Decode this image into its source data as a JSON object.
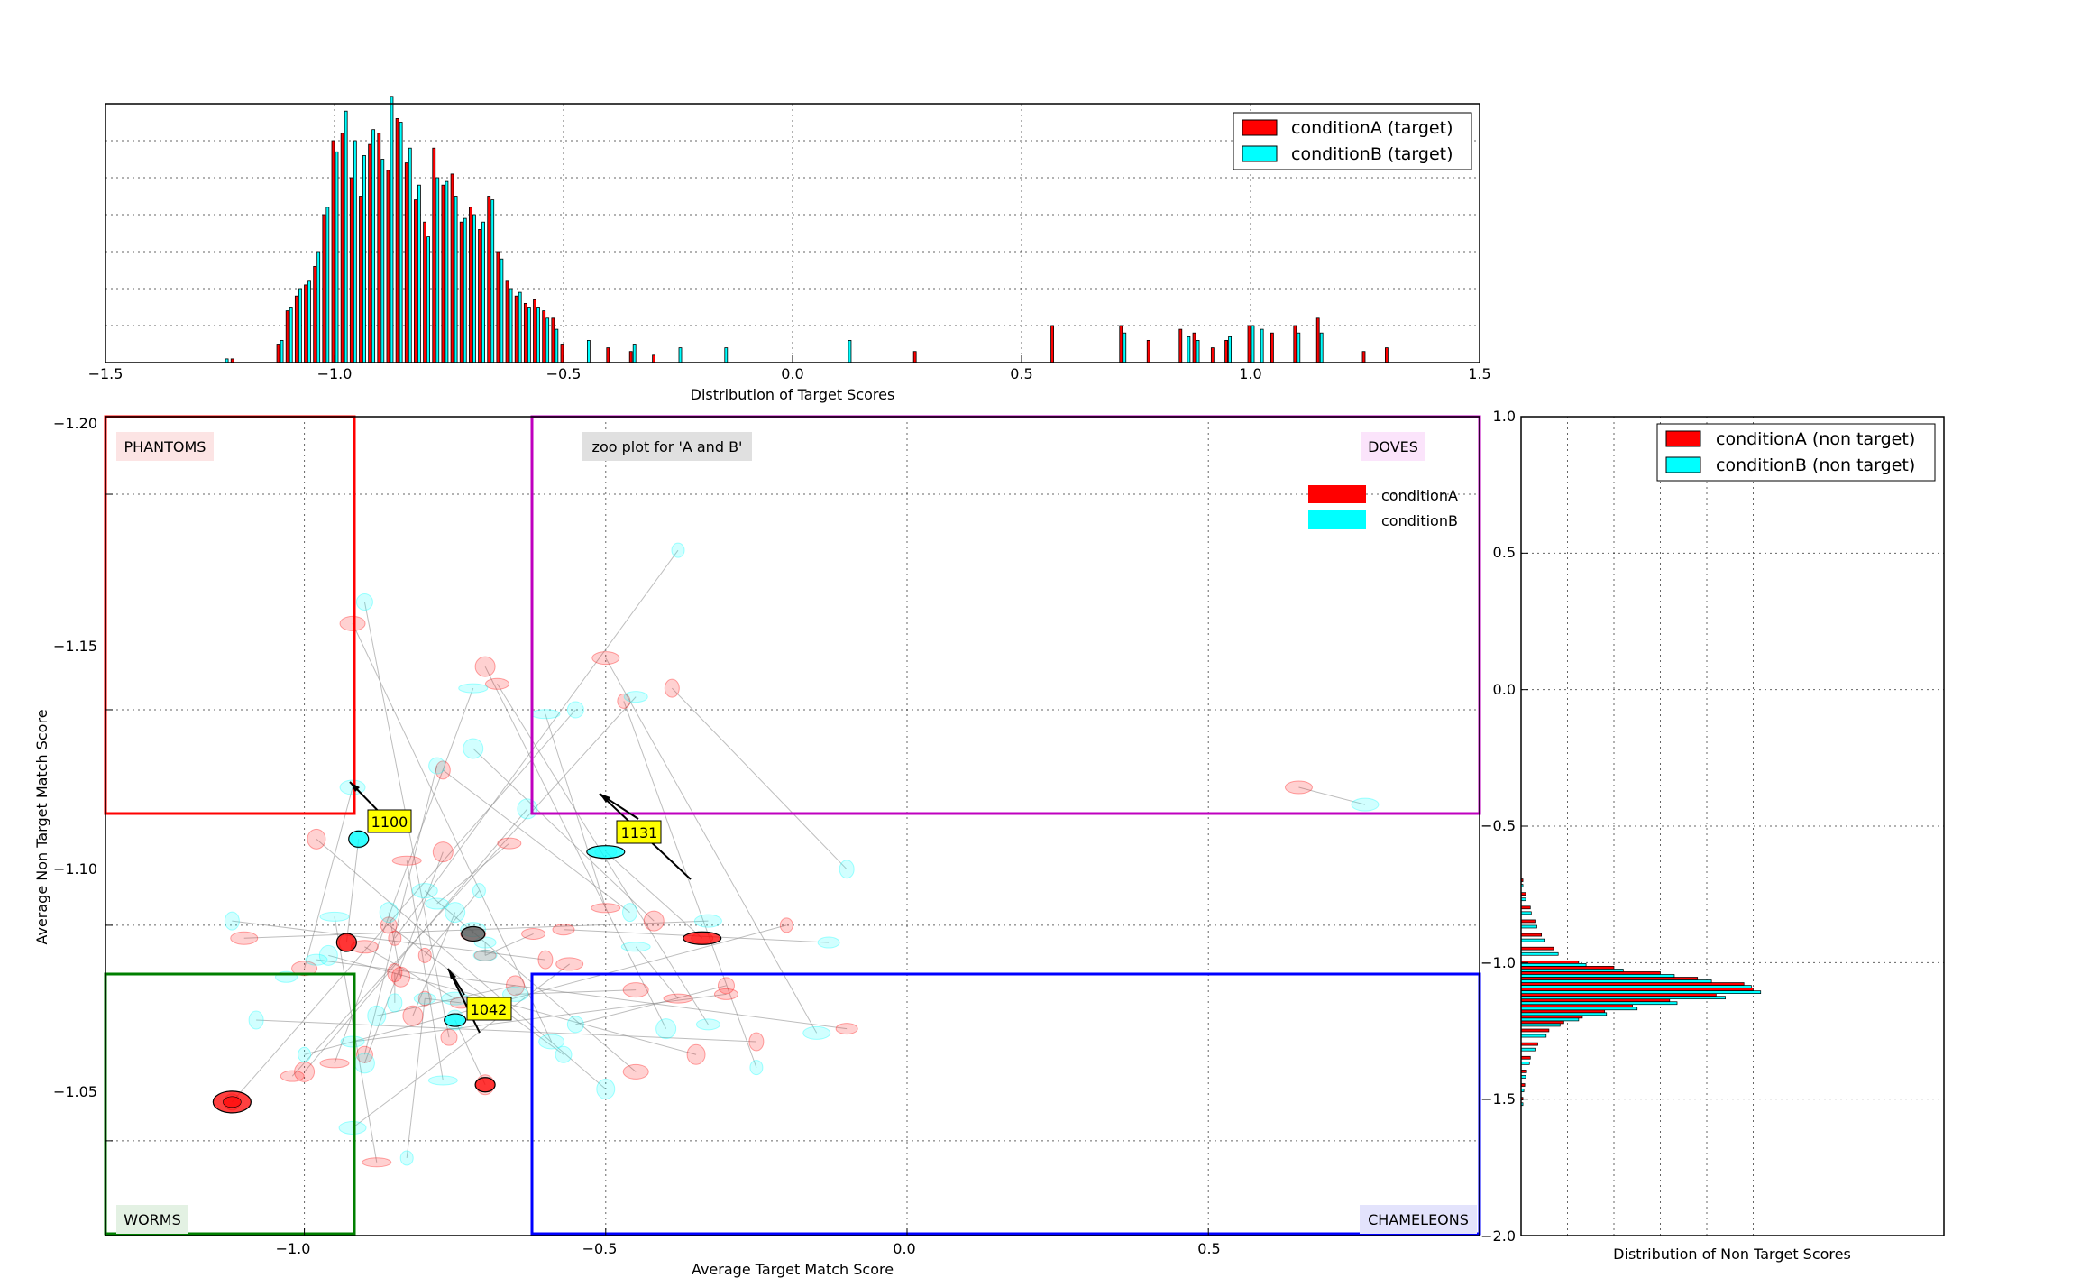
{
  "top_hist": {
    "xlabel": "Distribution of Target Scores",
    "xticks": [
      "−1.5",
      "−1.0",
      "−0.5",
      "0.0",
      "0.5",
      "1.0",
      "1.5"
    ],
    "legend": [
      "conditionA (target)",
      "conditionB (target)"
    ]
  },
  "right_hist": {
    "xlabel": "Distribution of Non Target Scores",
    "yticks": [
      "1.0",
      "0.5",
      "0.0",
      "−0.5",
      "−1.0",
      "−1.5",
      "−2.0"
    ],
    "legend": [
      "conditionA (non target)",
      "conditionB (non target)"
    ]
  },
  "main": {
    "xlabel": "Average Target Match Score",
    "ylabel": "Average Non Target Match Score",
    "xticks": [
      "−1.0",
      "−0.5",
      "0.0",
      "0.5"
    ],
    "yticks": [
      "−1.20",
      "−1.15",
      "−1.10",
      "−1.05"
    ],
    "title_box": "zoo plot for 'A and B'",
    "regions": {
      "phantoms": "PHANTOMS",
      "doves": "DOVES",
      "worms": "WORMS",
      "chameleons": "CHAMELEONS"
    },
    "legend": [
      "conditionA",
      "conditionB"
    ],
    "annotations": [
      "1100",
      "1131",
      "1042"
    ]
  },
  "colors": {
    "condA": "#ff0000",
    "condB": "#00ffff",
    "phantoms": "#ff0000",
    "doves": "#bf00bf",
    "worms": "#007f00",
    "chameleons": "#0000ff"
  },
  "chart_data": [
    {
      "type": "bar",
      "title": "",
      "xlabel": "Distribution of Target Scores",
      "xlim": [
        -1.5,
        1.5
      ],
      "grid": true,
      "legend_position": "top-right",
      "series": [
        {
          "name": "conditionA (target)",
          "x": [
            -1.22,
            -1.12,
            -1.1,
            -1.08,
            -1.06,
            -1.04,
            -1.02,
            -1,
            -0.98,
            -0.96,
            -0.94,
            -0.92,
            -0.9,
            -0.88,
            -0.86,
            -0.84,
            -0.82,
            -0.8,
            -0.78,
            -0.76,
            -0.74,
            -0.72,
            -0.7,
            -0.68,
            -0.66,
            -0.64,
            -0.62,
            -0.6,
            -0.58,
            -0.56,
            -0.54,
            -0.52,
            -0.5,
            -0.4,
            -0.35,
            -0.3,
            0.27,
            0.57,
            0.72,
            0.78,
            0.85,
            0.88,
            0.92,
            0.95,
            1,
            1.05,
            1.1,
            1.15,
            1.25,
            1.3
          ],
          "values": [
            1,
            5,
            14,
            18,
            21,
            26,
            40,
            60,
            62,
            50,
            45,
            59,
            62,
            52,
            66,
            54,
            44,
            38,
            58,
            48,
            51,
            38,
            42,
            36,
            45,
            30,
            22,
            18,
            16,
            17,
            14,
            12,
            5,
            4,
            3,
            2,
            3,
            10,
            10,
            6,
            9,
            8,
            4,
            6,
            10,
            8,
            10,
            12,
            3,
            4
          ]
        },
        {
          "name": "conditionB (target)",
          "x": [
            -1.24,
            -1.12,
            -1.1,
            -1.08,
            -1.06,
            -1.04,
            -1.02,
            -1,
            -0.98,
            -0.96,
            -0.94,
            -0.92,
            -0.9,
            -0.88,
            -0.86,
            -0.84,
            -0.82,
            -0.8,
            -0.78,
            -0.76,
            -0.74,
            -0.72,
            -0.7,
            -0.68,
            -0.66,
            -0.64,
            -0.62,
            -0.6,
            -0.58,
            -0.56,
            -0.54,
            -0.52,
            -0.45,
            -0.35,
            -0.25,
            -0.15,
            0.12,
            0.72,
            0.86,
            0.88,
            0.95,
            1,
            1.02,
            1.1,
            1.15
          ],
          "values": [
            1,
            6,
            15,
            20,
            22,
            30,
            42,
            57,
            68,
            60,
            56,
            63,
            55,
            72,
            65,
            58,
            48,
            34,
            50,
            49,
            45,
            39,
            40,
            38,
            44,
            28,
            20,
            19,
            15,
            15,
            12,
            9,
            6,
            5,
            4,
            4,
            6,
            8,
            7,
            6,
            7,
            10,
            9,
            8,
            8
          ]
        }
      ]
    },
    {
      "type": "scatter",
      "title": "zoo plot for 'A and B'",
      "xlabel": "Average Target Match Score",
      "ylabel": "Average Non Target Match Score",
      "xlim": [
        -1.33,
        0.95
      ],
      "ylim": [
        -1.218,
        -1.028
      ],
      "grid": true,
      "legend_position": "top-right",
      "series": [
        {
          "name": "conditionA",
          "points": [
            [
              -0.93,
              -1.096
            ],
            [
              -0.34,
              -1.097
            ],
            [
              -0.7,
              -1.063
            ],
            [
              -0.72,
              -1.098
            ],
            [
              -1.12,
              -1.059
            ],
            [
              -0.5,
              -1.104
            ],
            [
              -0.42,
              -1.101
            ],
            [
              -0.62,
              -1.098
            ],
            [
              -0.8,
              -1.093
            ],
            [
              -0.9,
              -1.095
            ],
            [
              -0.85,
              -1.089
            ],
            [
              -0.74,
              -1.082
            ],
            [
              -0.65,
              -1.086
            ],
            [
              -0.45,
              -1.085
            ],
            [
              -0.3,
              -1.086
            ],
            [
              -0.38,
              -1.083
            ],
            [
              -0.7,
              -1.16
            ],
            [
              -0.68,
              -1.156
            ],
            [
              -0.47,
              -1.152
            ],
            [
              -0.5,
              -1.162
            ],
            [
              -0.39,
              -1.155
            ],
            [
              -0.57,
              -1.099
            ],
            [
              -0.98,
              -1.12
            ],
            [
              -0.92,
              -1.17
            ],
            [
              -0.86,
              -1.1
            ],
            [
              -0.83,
              -1.115
            ],
            [
              -0.77,
              -1.117
            ],
            [
              -0.3,
              -1.084
            ],
            [
              -0.2,
              -1.1
            ],
            [
              -0.56,
              -1.091
            ],
            [
              -0.6,
              -1.092
            ],
            [
              -0.1,
              -1.076
            ],
            [
              -0.35,
              -1.07
            ],
            [
              -0.45,
              -1.066
            ],
            [
              -0.9,
              -1.07
            ],
            [
              -0.95,
              -1.068
            ],
            [
              -1.0,
              -1.066
            ],
            [
              -1.02,
              -1.065
            ],
            [
              -0.85,
              -1.097
            ],
            [
              -1.1,
              -1.097
            ],
            [
              -0.77,
              -1.136
            ],
            [
              -0.7,
              -1.093
            ],
            [
              -0.84,
              -1.088
            ],
            [
              -1.0,
              -1.09
            ],
            [
              -0.76,
              -1.074
            ],
            [
              -0.88,
              -1.045
            ],
            [
              -0.82,
              -1.079
            ],
            [
              -0.66,
              -1.119
            ],
            [
              -0.8,
              -1.083
            ],
            [
              0.65,
              -1.132
            ],
            [
              -0.25,
              -1.073
            ]
          ]
        },
        {
          "name": "conditionB",
          "points": [
            [
              -0.91,
              -1.12
            ],
            [
              -0.5,
              -1.117
            ],
            [
              -0.75,
              -1.078
            ],
            [
              -0.72,
              -1.099
            ],
            [
              -0.55,
              -1.15
            ],
            [
              -0.6,
              -1.149
            ],
            [
              -0.72,
              -1.141
            ],
            [
              -0.7,
              -1.093
            ],
            [
              -0.71,
              -1.108
            ],
            [
              -0.75,
              -1.083
            ],
            [
              -0.85,
              -1.082
            ],
            [
              -0.8,
              -1.083
            ],
            [
              -0.88,
              -1.079
            ],
            [
              -0.65,
              -1.084
            ],
            [
              -0.55,
              -1.077
            ],
            [
              -0.45,
              -1.095
            ],
            [
              -0.4,
              -1.076
            ],
            [
              -0.33,
              -1.077
            ],
            [
              -0.25,
              -1.067
            ],
            [
              -0.15,
              -1.075
            ],
            [
              -0.1,
              -1.113
            ],
            [
              -0.13,
              -1.096
            ],
            [
              -0.5,
              -1.062
            ],
            [
              -0.59,
              -1.073
            ],
            [
              -0.57,
              -1.07
            ],
            [
              -0.77,
              -1.064
            ],
            [
              -0.9,
              -1.068
            ],
            [
              -0.92,
              -1.073
            ],
            [
              -1.0,
              -1.07
            ],
            [
              -0.92,
              -1.053
            ],
            [
              -1.12,
              -1.101
            ],
            [
              -0.98,
              -1.092
            ],
            [
              -0.96,
              -1.093
            ],
            [
              -0.8,
              -1.108
            ],
            [
              -0.78,
              -1.137
            ],
            [
              -0.72,
              -1.155
            ],
            [
              -0.63,
              -1.127
            ],
            [
              -0.45,
              -1.153
            ],
            [
              -0.38,
              -1.187
            ],
            [
              -0.33,
              -1.101
            ],
            [
              -0.46,
              -1.103
            ],
            [
              -0.7,
              -1.096
            ],
            [
              -0.86,
              -1.103
            ],
            [
              -0.92,
              -1.132
            ],
            [
              -0.9,
              -1.175
            ],
            [
              -0.95,
              -1.102
            ],
            [
              -0.75,
              -1.103
            ],
            [
              -0.78,
              -1.105
            ],
            [
              -0.83,
              -1.046
            ],
            [
              0.76,
              -1.128
            ],
            [
              -1.08,
              -1.078
            ],
            [
              -1.03,
              -1.088
            ]
          ]
        }
      ]
    },
    {
      "type": "bar",
      "title": "",
      "xlabel": "Distribution of Non Target Scores",
      "ylim": [
        -2.0,
        1.0
      ],
      "orientation": "horizontal",
      "grid": true,
      "legend_position": "top-right",
      "series": [
        {
          "name": "conditionA (non target)",
          "y": [
            -0.7,
            -0.75,
            -0.8,
            -0.85,
            -0.9,
            -0.95,
            -1.0,
            -1.02,
            -1.04,
            -1.06,
            -1.08,
            -1.1,
            -1.12,
            -1.14,
            -1.16,
            -1.18,
            -1.2,
            -1.22,
            -1.25,
            -1.3,
            -1.35,
            -1.4,
            -1.45,
            -1.5
          ],
          "values": [
            2,
            5,
            10,
            16,
            22,
            35,
            62,
            100,
            150,
            190,
            240,
            250,
            210,
            160,
            120,
            90,
            66,
            46,
            30,
            18,
            10,
            6,
            4,
            2
          ]
        },
        {
          "name": "conditionB (non target)",
          "y": [
            -0.72,
            -0.77,
            -0.82,
            -0.87,
            -0.92,
            -0.97,
            -1.01,
            -1.03,
            -1.05,
            -1.07,
            -1.09,
            -1.11,
            -1.13,
            -1.15,
            -1.17,
            -1.19,
            -1.21,
            -1.23,
            -1.27,
            -1.32,
            -1.37,
            -1.42,
            -1.47,
            -1.52
          ],
          "values": [
            2,
            5,
            11,
            17,
            25,
            40,
            70,
            110,
            165,
            205,
            248,
            258,
            220,
            168,
            125,
            92,
            62,
            42,
            27,
            16,
            9,
            5,
            3,
            2
          ]
        }
      ]
    }
  ]
}
